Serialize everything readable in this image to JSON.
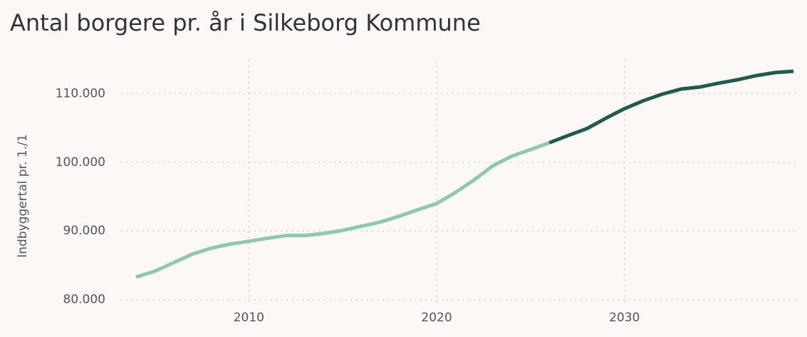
{
  "chart_data": {
    "type": "line",
    "title": "Antal borgere pr. år i Silkeborg Kommune",
    "y_label": "Indbyggertal pr. 1./1",
    "series": [
      {
        "color": "#8dcaa6",
        "x": [
          2004,
          2005,
          2006,
          2007,
          2008,
          2009,
          2010,
          2011,
          2012,
          2013,
          2014,
          2015,
          2016,
          2017,
          2018,
          2019,
          2020,
          2021,
          2022,
          2023,
          2024,
          2025,
          2026
        ],
        "values": [
          83300,
          84150,
          85400,
          86650,
          87500,
          88100,
          88500,
          88950,
          89350,
          89350,
          89650,
          90100,
          90700,
          91300,
          92150,
          93100,
          94000,
          95600,
          97450,
          99500,
          100900,
          101850,
          102850
        ]
      },
      {
        "color": "#1f5c4a",
        "x": [
          2026,
          2027,
          2028,
          2029,
          2030,
          2031,
          2032,
          2033,
          2034,
          2035,
          2036,
          2037,
          2038,
          2039
        ],
        "values": [
          102850,
          103900,
          104900,
          106400,
          107800,
          108950,
          109900,
          110650,
          110950,
          111500,
          112000,
          112600,
          113050,
          113250
        ]
      }
    ],
    "xlim": [
      2003.2,
      2039.3
    ],
    "xticks": [
      2010,
      2020,
      2030
    ],
    "ylim": [
      78000,
      114800
    ],
    "yticks": [
      {
        "value": 80000,
        "label": "80.000"
      },
      {
        "value": 90000,
        "label": "90.000"
      },
      {
        "value": 100000,
        "label": "100.000"
      },
      {
        "value": 110000,
        "label": "110.000"
      }
    ],
    "grid": true
  }
}
